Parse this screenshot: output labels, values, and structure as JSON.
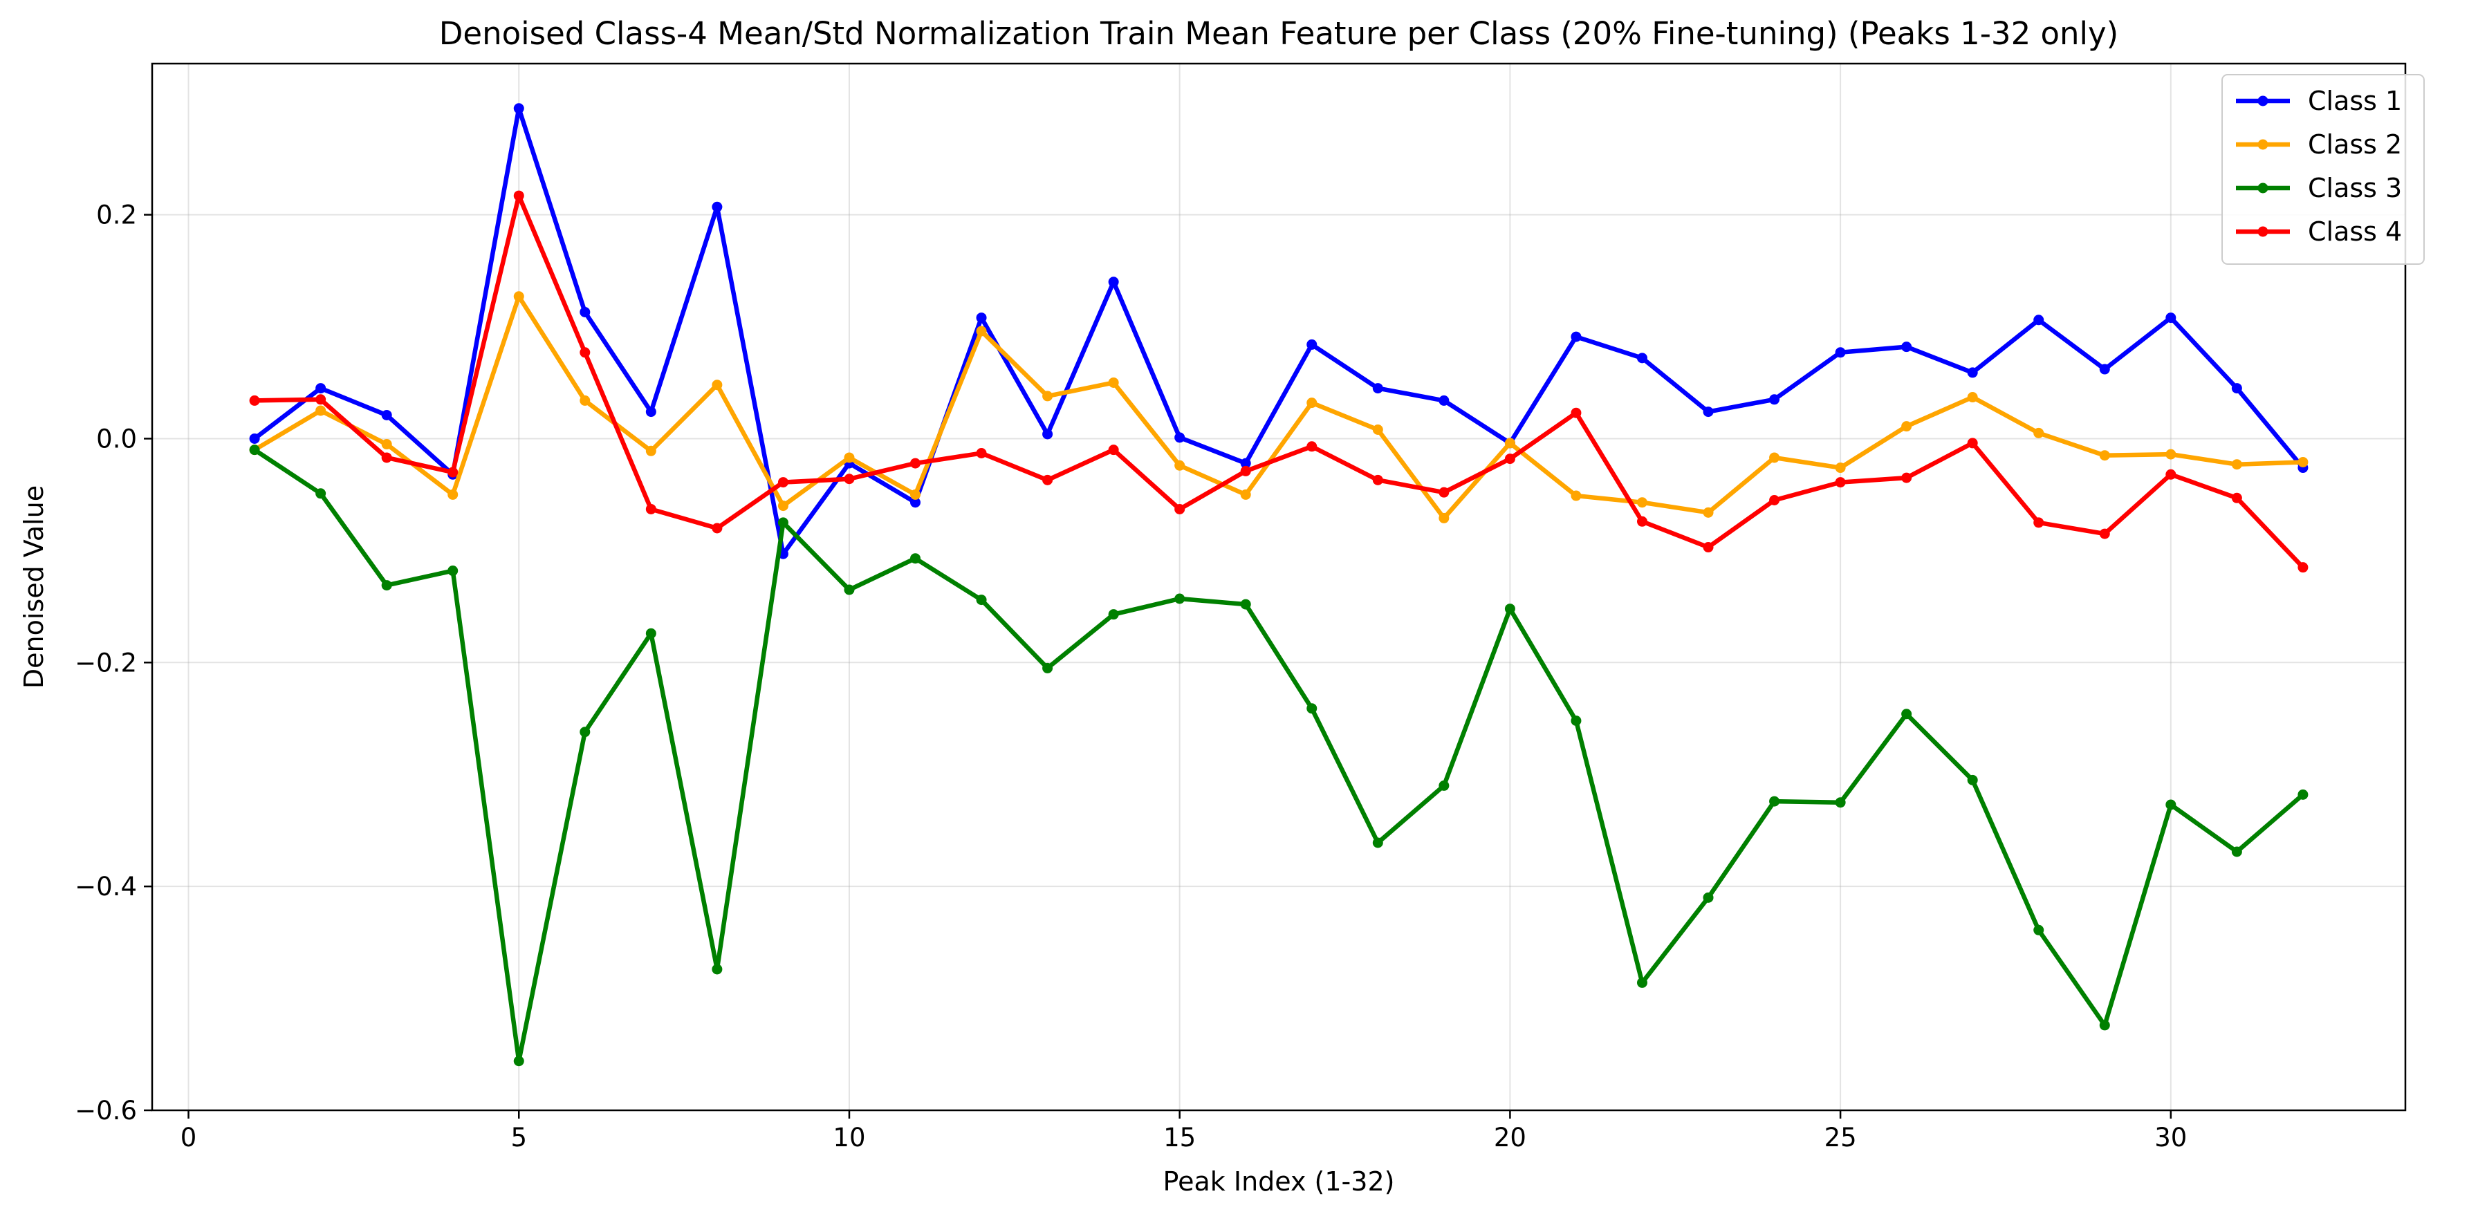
{
  "chart_data": {
    "type": "line",
    "title": "Denoised Class-4 Mean/Std Normalization Train Mean Feature per Class (20% Fine-tuning) (Peaks 1-32 only)",
    "xlabel": "Peak Index (1-32)",
    "ylabel": "Denoised Value",
    "xlim": [
      -0.55,
      33.55
    ],
    "ylim": [
      -0.6,
      0.335
    ],
    "xticks": [
      0,
      5,
      10,
      15,
      20,
      25,
      30
    ],
    "yticks": [
      -0.6,
      -0.4,
      -0.2,
      0.0,
      0.2
    ],
    "xtick_labels": [
      "0",
      "5",
      "10",
      "15",
      "20",
      "25",
      "30"
    ],
    "ytick_labels": [
      "−0.6",
      "−0.4",
      "−0.2",
      "0.0",
      "0.2"
    ],
    "grid": true,
    "legend_position": "top-right",
    "x": [
      1,
      2,
      3,
      4,
      5,
      6,
      7,
      8,
      9,
      10,
      11,
      12,
      13,
      14,
      15,
      16,
      17,
      18,
      19,
      20,
      21,
      22,
      23,
      24,
      25,
      26,
      27,
      28,
      29,
      30,
      31,
      32
    ],
    "series": [
      {
        "name": "Class 1",
        "color": "#0000ff",
        "values": [
          0.0,
          0.045,
          0.021,
          -0.032,
          0.295,
          0.113,
          0.024,
          0.207,
          -0.103,
          -0.022,
          -0.057,
          0.108,
          0.004,
          0.14,
          0.001,
          -0.022,
          0.084,
          0.045,
          0.034,
          -0.004,
          0.091,
          0.072,
          0.024,
          0.035,
          0.077,
          0.082,
          0.059,
          0.106,
          0.062,
          0.108,
          0.045,
          -0.026
        ]
      },
      {
        "name": "Class 2",
        "color": "#ffa500",
        "values": [
          -0.01,
          0.025,
          -0.005,
          -0.05,
          0.127,
          0.034,
          -0.011,
          0.048,
          -0.06,
          -0.017,
          -0.05,
          0.096,
          0.038,
          0.05,
          -0.024,
          -0.05,
          0.032,
          0.008,
          -0.071,
          -0.004,
          -0.051,
          -0.057,
          -0.066,
          -0.017,
          -0.026,
          0.011,
          0.037,
          0.005,
          -0.015,
          -0.014,
          -0.023,
          -0.021
        ]
      },
      {
        "name": "Class 3",
        "color": "#008000",
        "values": [
          -0.01,
          -0.049,
          -0.131,
          -0.118,
          -0.556,
          -0.262,
          -0.174,
          -0.474,
          -0.075,
          -0.135,
          -0.107,
          -0.144,
          -0.205,
          -0.157,
          -0.143,
          -0.148,
          -0.241,
          -0.361,
          -0.31,
          -0.152,
          -0.252,
          -0.486,
          -0.41,
          -0.324,
          -0.325,
          -0.246,
          -0.305,
          -0.439,
          -0.524,
          -0.327,
          -0.369,
          -0.318
        ]
      },
      {
        "name": "Class 4",
        "color": "#ff0000",
        "values": [
          0.034,
          0.035,
          -0.017,
          -0.03,
          0.217,
          0.077,
          -0.063,
          -0.08,
          -0.039,
          -0.036,
          -0.022,
          -0.013,
          -0.037,
          -0.01,
          -0.063,
          -0.029,
          -0.007,
          -0.037,
          -0.048,
          -0.018,
          0.023,
          -0.074,
          -0.097,
          -0.055,
          -0.039,
          -0.035,
          -0.004,
          -0.075,
          -0.085,
          -0.032,
          -0.053,
          -0.115
        ]
      }
    ]
  }
}
